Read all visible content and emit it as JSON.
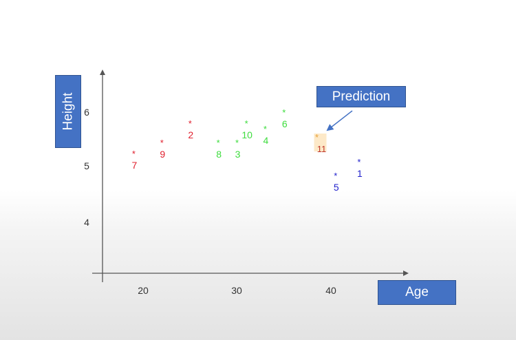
{
  "chart_data": {
    "type": "scatter",
    "xlabel": "Age",
    "ylabel": "Height",
    "xticks": [
      "20",
      "30",
      "40"
    ],
    "yticks": [
      "4",
      "5",
      "6"
    ],
    "marker": "*",
    "annotation": "Prediction",
    "annotation_target": "11",
    "points": [
      {
        "label": "1",
        "x": 43,
        "y": 5.1,
        "color": "#2222cc"
      },
      {
        "label": "2",
        "x": 25,
        "y": 5.8,
        "color": "#e0202e"
      },
      {
        "label": "3",
        "x": 30,
        "y": 5.45,
        "color": "#3ddc3d"
      },
      {
        "label": "4",
        "x": 33,
        "y": 5.7,
        "color": "#3ddc3d"
      },
      {
        "label": "5",
        "x": 40.5,
        "y": 4.85,
        "color": "#2222cc"
      },
      {
        "label": "6",
        "x": 35,
        "y": 6.0,
        "color": "#3ddc3d"
      },
      {
        "label": "7",
        "x": 19,
        "y": 5.25,
        "color": "#e0202e"
      },
      {
        "label": "8",
        "x": 28,
        "y": 5.45,
        "color": "#3ddc3d"
      },
      {
        "label": "9",
        "x": 22,
        "y": 5.45,
        "color": "#e0202e"
      },
      {
        "label": "10",
        "x": 31,
        "y": 5.8,
        "color": "#3ddc3d"
      },
      {
        "label": "11",
        "x": 38.5,
        "y": 5.55,
        "color": "#e8a23a"
      }
    ]
  }
}
